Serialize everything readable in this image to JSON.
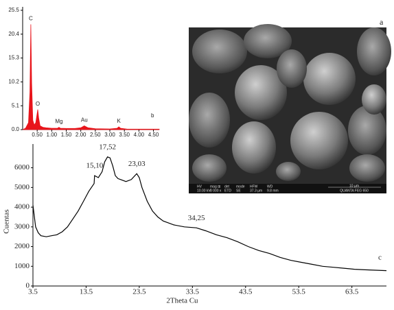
{
  "chart_data": [
    {
      "type": "area",
      "panel_label": "b",
      "color": "#e8141b",
      "x": [
        0,
        0.1,
        0.2,
        0.25,
        0.28,
        0.31,
        0.35,
        0.4,
        0.45,
        0.5,
        0.52,
        0.55,
        0.6,
        0.7,
        0.8,
        1.0,
        1.2,
        1.25,
        1.3,
        1.5,
        1.8,
        2.0,
        2.12,
        2.25,
        2.5,
        3.0,
        3.25,
        3.31,
        3.37,
        3.6,
        4.0,
        4.5,
        4.7
      ],
      "values": [
        0,
        0.3,
        1.5,
        8,
        22.5,
        10,
        2,
        1,
        1.5,
        3.5,
        4.3,
        2.5,
        0.8,
        0.5,
        0.4,
        0.3,
        0.3,
        0.5,
        0.3,
        0.25,
        0.25,
        0.4,
        0.8,
        0.4,
        0.2,
        0.15,
        0.3,
        0.6,
        0.3,
        0.1,
        0.1,
        0.1,
        0.1
      ],
      "xlim": [
        0,
        4.7
      ],
      "ylim": [
        0,
        25.5
      ],
      "xticks": [
        {
          "value": 0.5,
          "label": "0.50"
        },
        {
          "value": 1,
          "label": "1.00"
        },
        {
          "value": 1.5,
          "label": "1.50"
        },
        {
          "value": 2,
          "label": "2.00"
        },
        {
          "value": 2.5,
          "label": "2.50"
        },
        {
          "value": 3,
          "label": "3.00"
        },
        {
          "value": 3.5,
          "label": "3.50"
        },
        {
          "value": 4,
          "label": "4.00"
        },
        {
          "value": 4.5,
          "label": "4.50"
        }
      ],
      "yticks": [
        {
          "value": 0,
          "label": "0.0"
        },
        5.1,
        10.2,
        15.3,
        20.4,
        25.5
      ],
      "annotations": [
        {
          "x": 0.28,
          "label": "C"
        },
        {
          "x": 0.52,
          "label": "O"
        },
        {
          "x": 1.25,
          "label": "Mg"
        },
        {
          "x": 2.12,
          "label": "Au"
        },
        {
          "x": 3.31,
          "label": "K"
        }
      ]
    },
    {
      "type": "line",
      "panel_label": "c",
      "color": "#000000",
      "xlabel": "2Theta Cu",
      "ylabel": "Cuentas",
      "x": [
        3.5,
        4,
        4.5,
        5,
        6,
        7,
        8,
        9,
        10,
        11,
        12,
        13,
        14,
        15,
        15.1,
        15.8,
        16.5,
        17,
        17.52,
        18,
        18.5,
        19,
        19.5,
        20,
        21,
        22,
        23.03,
        23.5,
        24,
        25,
        26,
        27,
        28,
        29,
        30,
        32,
        34.25,
        36,
        38,
        40,
        42,
        44,
        46,
        48,
        50,
        52,
        54,
        56,
        58,
        60,
        62,
        64,
        66,
        68,
        70
      ],
      "values": [
        4100,
        3000,
        2700,
        2550,
        2500,
        2550,
        2600,
        2750,
        3000,
        3400,
        3800,
        4300,
        4800,
        5200,
        5600,
        5500,
        5800,
        6300,
        6550,
        6500,
        6100,
        5600,
        5450,
        5400,
        5300,
        5400,
        5700,
        5500,
        5000,
        4300,
        3800,
        3500,
        3300,
        3200,
        3100,
        3000,
        2950,
        2800,
        2600,
        2450,
        2250,
        2000,
        1800,
        1650,
        1450,
        1300,
        1200,
        1100,
        1000,
        950,
        900,
        850,
        820,
        800,
        780
      ],
      "xlim": [
        3.5,
        70
      ],
      "ylim": [
        0,
        7100
      ],
      "xticks": [
        3.5,
        13.5,
        23.5,
        33.5,
        43.5,
        53.5,
        63.5
      ],
      "yticks": [
        0,
        1000,
        2000,
        3000,
        4000,
        5000,
        6000
      ],
      "annotations": [
        {
          "x": 15.1,
          "label": "15,10"
        },
        {
          "x": 17.52,
          "label": "17,52"
        },
        {
          "x": 23.03,
          "label": "23,03"
        },
        {
          "x": 34.25,
          "label": "34,25"
        }
      ]
    }
  ],
  "image": {
    "panel_label": "a",
    "info": [
      [
        "HV",
        "10.00 kV"
      ],
      [
        "mag ⊞",
        "8 000 x"
      ],
      [
        "det",
        "ETD"
      ],
      [
        "mode",
        "SE"
      ],
      [
        "HFW",
        "37.3 µm"
      ],
      [
        "WD",
        "9.8 mm"
      ]
    ],
    "scale": "10 µm",
    "brand": "QUANTA FEG 650"
  }
}
